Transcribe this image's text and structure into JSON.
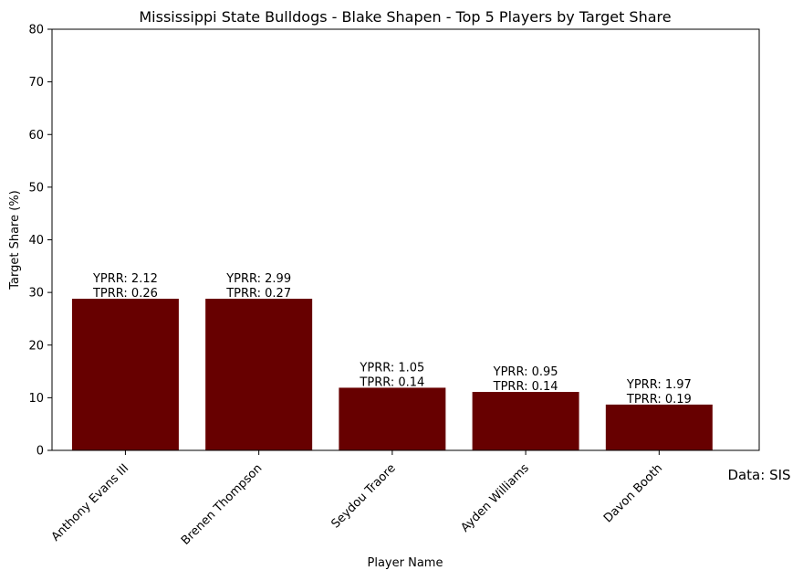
{
  "chart_data": {
    "type": "bar",
    "title": "Mississippi State Bulldogs - Blake Shapen - Top 5 Players by Target Share",
    "xlabel": "Player Name",
    "ylabel": "Target Share (%)",
    "ylim": [
      0,
      80
    ],
    "yticks": [
      "0",
      "10",
      "20",
      "30",
      "40",
      "50",
      "60",
      "70",
      "80"
    ],
    "grid": false,
    "bar_color": "#670000",
    "categories": [
      "Anthony Evans III",
      "Brenen Thompson",
      "Seydou Traore",
      "Ayden Williams",
      "Davon Booth"
    ],
    "values": [
      28.8,
      28.8,
      11.9,
      11.1,
      8.7
    ],
    "annotations": [
      {
        "yprr": "YPRR: 2.12",
        "tprr": "TPRR: 0.26"
      },
      {
        "yprr": "YPRR: 2.99",
        "tprr": "TPRR: 0.27"
      },
      {
        "yprr": "YPRR: 1.05",
        "tprr": "TPRR: 0.14"
      },
      {
        "yprr": "YPRR: 0.95",
        "tprr": "TPRR: 0.14"
      },
      {
        "yprr": "YPRR: 1.97",
        "tprr": "TPRR: 0.19"
      }
    ],
    "source_note": "Data: SIS"
  }
}
